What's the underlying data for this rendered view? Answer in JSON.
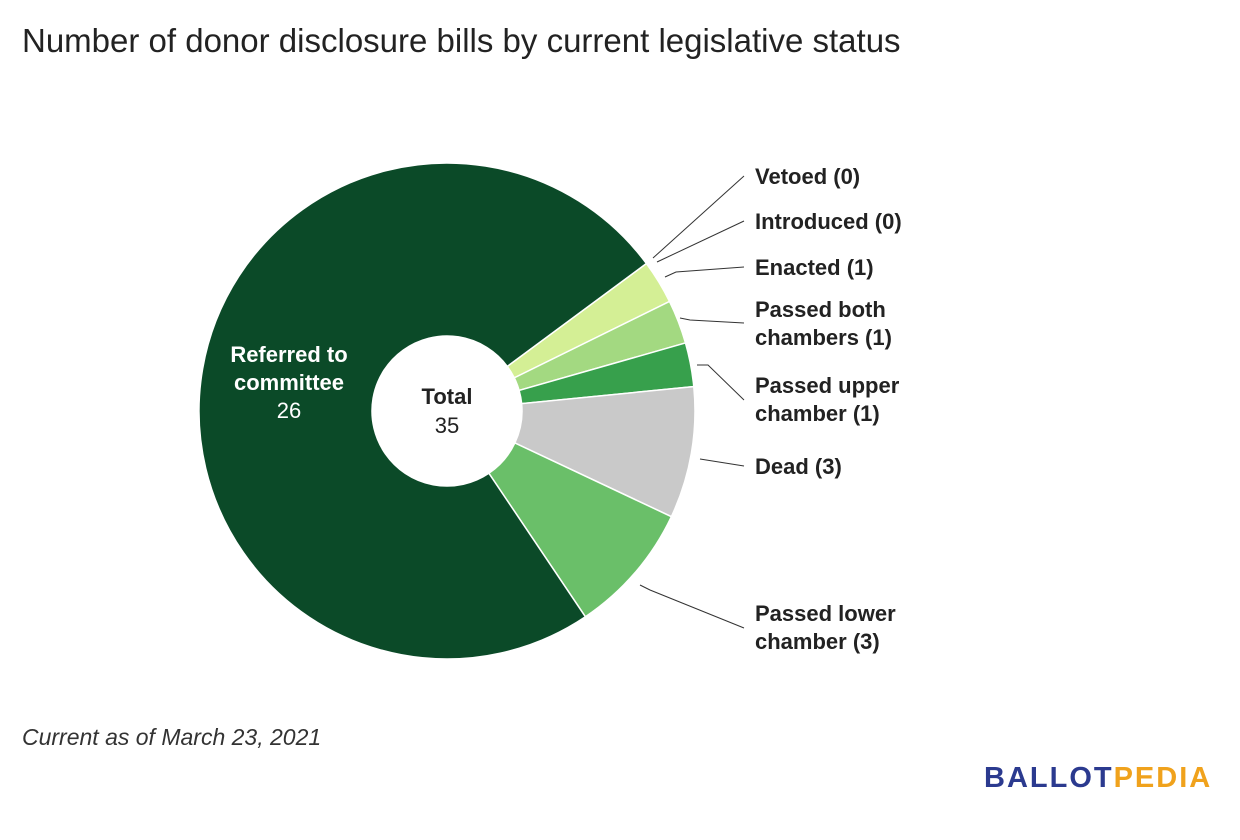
{
  "title": "Number of donor disclosure bills by current legislative status",
  "footnote": "Current as of March 23, 2021",
  "logo": {
    "part1": "BALLOT",
    "part2": "PEDIA",
    "color1": "#2b3a8f",
    "color2": "#f0a21c"
  },
  "chart_data": {
    "type": "pie",
    "title": "Number of donor disclosure bills by current legislative status",
    "center_label": "Total",
    "center_value": "35",
    "total": 35,
    "slices": [
      {
        "name": "Vetoed",
        "value": 0,
        "label_lines": [
          "Vetoed (0)"
        ],
        "color": "#d4ef95"
      },
      {
        "name": "Introduced",
        "value": 0,
        "label_lines": [
          "Introduced (0)"
        ],
        "color": "#c3e98a"
      },
      {
        "name": "Enacted",
        "value": 1,
        "label_lines": [
          "Enacted (1)"
        ],
        "color": "#d4ef95"
      },
      {
        "name": "Passed both chambers",
        "value": 1,
        "label_lines": [
          "Passed both",
          "chambers (1)"
        ],
        "color": "#a3d981"
      },
      {
        "name": "Passed upper chamber",
        "value": 1,
        "label_lines": [
          "Passed upper",
          "chamber (1)"
        ],
        "color": "#37a04c"
      },
      {
        "name": "Dead",
        "value": 3,
        "label_lines": [
          "Dead (3)"
        ],
        "color": "#c9c9c9"
      },
      {
        "name": "Passed lower chamber",
        "value": 3,
        "label_lines": [
          "Passed lower",
          "chamber (3)"
        ],
        "color": "#6abf69"
      },
      {
        "name": "Referred to committee",
        "value": 26,
        "label_lines": [
          "Referred to",
          "committee"
        ],
        "inner_value": "26",
        "color": "#0b4a28"
      }
    ]
  }
}
